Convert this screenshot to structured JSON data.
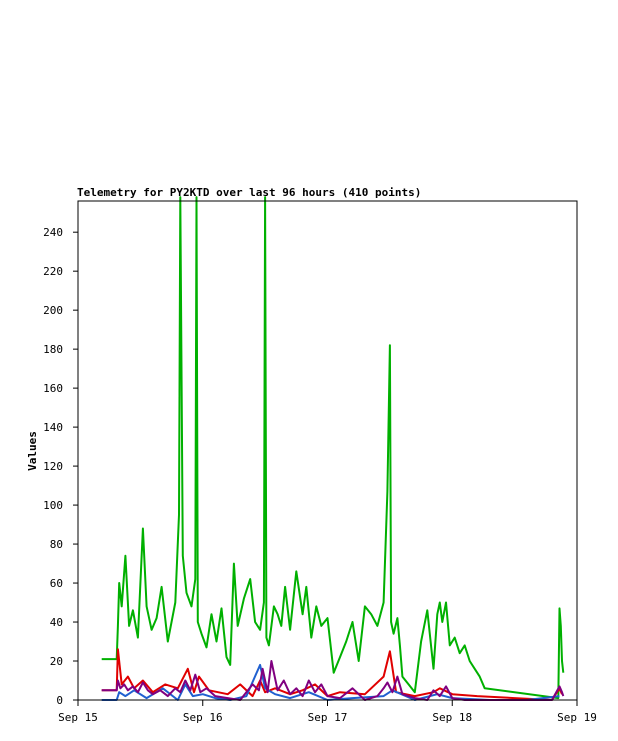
{
  "chart_data": {
    "type": "line",
    "title": "Telemetry for PY2KTD over last 96 hours (410 points)",
    "xlabel": "",
    "ylabel": "Values",
    "ylim": [
      0,
      256
    ],
    "xlim": [
      0,
      4
    ],
    "y_ticks": [
      0,
      20,
      40,
      60,
      80,
      100,
      120,
      140,
      160,
      180,
      200,
      220,
      240
    ],
    "x_ticks": [
      {
        "value": 0,
        "label": "Sep 15"
      },
      {
        "value": 1,
        "label": "Sep 16"
      },
      {
        "value": 2,
        "label": "Sep 17"
      },
      {
        "value": 3,
        "label": "Sep 18"
      },
      {
        "value": 4,
        "label": "Sep 19"
      }
    ],
    "grid": false,
    "legend": "none",
    "series": [
      {
        "color": "#00b000",
        "x": [
          0.19,
          0.31,
          0.32,
          0.33,
          0.35,
          0.38,
          0.41,
          0.44,
          0.48,
          0.52,
          0.55,
          0.59,
          0.63,
          0.67,
          0.72,
          0.78,
          0.81,
          0.82,
          0.84,
          0.87,
          0.91,
          0.94,
          0.95,
          0.96,
          0.99,
          1.03,
          1.07,
          1.11,
          1.15,
          1.19,
          1.22,
          1.25,
          1.28,
          1.33,
          1.38,
          1.42,
          1.46,
          1.49,
          1.5,
          1.51,
          1.53,
          1.57,
          1.6,
          1.63,
          1.66,
          1.7,
          1.75,
          1.8,
          1.83,
          1.87,
          1.91,
          1.95,
          2.0,
          2.05,
          2.1,
          2.15,
          2.2,
          2.25,
          2.3,
          2.35,
          2.4,
          2.45,
          2.48,
          2.5,
          2.51,
          2.53,
          2.56,
          2.58,
          2.6,
          2.65,
          2.7,
          2.75,
          2.8,
          2.85,
          2.88,
          2.9,
          2.92,
          2.95,
          2.98,
          3.02,
          3.06,
          3.1,
          3.14,
          3.18,
          3.22,
          3.26,
          3.85,
          3.86,
          3.87,
          3.88,
          3.89
        ],
        "y": [
          21,
          21,
          38,
          60,
          48,
          74,
          38,
          46,
          32,
          88,
          48,
          36,
          42,
          58,
          30,
          50,
          95,
          258,
          74,
          55,
          48,
          62,
          258,
          40,
          34,
          27,
          44,
          30,
          47,
          22,
          18,
          70,
          38,
          52,
          62,
          40,
          36,
          50,
          258,
          32,
          28,
          48,
          44,
          38,
          58,
          36,
          66,
          44,
          58,
          32,
          48,
          38,
          42,
          14,
          22,
          30,
          40,
          20,
          48,
          44,
          38,
          50,
          107,
          182,
          40,
          34,
          42,
          28,
          12,
          8,
          4,
          30,
          46,
          16,
          44,
          50,
          40,
          50,
          28,
          32,
          24,
          28,
          20,
          16,
          12,
          6,
          1,
          47,
          38,
          20,
          14
        ]
      },
      {
        "color": "#e00000",
        "x": [
          0.19,
          0.31,
          0.32,
          0.35,
          0.4,
          0.45,
          0.52,
          0.6,
          0.7,
          0.8,
          0.88,
          0.93,
          0.97,
          1.05,
          1.2,
          1.3,
          1.4,
          1.46,
          1.5,
          1.58,
          1.7,
          1.8,
          1.9,
          2.0,
          2.1,
          2.3,
          2.45,
          2.5,
          2.55,
          2.7,
          2.85,
          2.9,
          3.0,
          3.2,
          3.5,
          3.8,
          3.86,
          3.88
        ],
        "y": [
          5,
          5,
          26,
          8,
          12,
          6,
          10,
          4,
          8,
          6,
          16,
          4,
          12,
          5,
          3,
          8,
          2,
          10,
          4,
          6,
          3,
          5,
          8,
          2,
          4,
          3,
          12,
          25,
          4,
          2,
          4,
          6,
          3,
          2,
          1,
          0,
          6,
          3
        ]
      },
      {
        "color": "#2060d0",
        "x": [
          0.19,
          0.31,
          0.33,
          0.38,
          0.45,
          0.55,
          0.68,
          0.8,
          0.86,
          0.92,
          1.0,
          1.1,
          1.22,
          1.35,
          1.46,
          1.5,
          1.58,
          1.7,
          1.85,
          2.0,
          2.2,
          2.45,
          2.52,
          2.7,
          2.88,
          3.0,
          3.3,
          3.6,
          3.86
        ],
        "y": [
          0,
          0,
          4,
          2,
          5,
          1,
          6,
          0,
          8,
          2,
          3,
          1,
          0,
          2,
          18,
          6,
          3,
          1,
          4,
          0,
          1,
          2,
          5,
          0,
          3,
          1,
          0,
          0,
          2
        ]
      },
      {
        "color": "#800080",
        "x": [
          0.19,
          0.31,
          0.32,
          0.34,
          0.37,
          0.4,
          0.44,
          0.48,
          0.52,
          0.56,
          0.6,
          0.66,
          0.72,
          0.78,
          0.82,
          0.86,
          0.9,
          0.94,
          0.98,
          1.03,
          1.1,
          1.2,
          1.3,
          1.4,
          1.45,
          1.48,
          1.52,
          1.55,
          1.6,
          1.65,
          1.7,
          1.75,
          1.8,
          1.85,
          1.9,
          1.95,
          2.0,
          2.1,
          2.2,
          2.3,
          2.4,
          2.45,
          2.48,
          2.52,
          2.56,
          2.6,
          2.7,
          2.8,
          2.85,
          2.9,
          2.95,
          3.0,
          3.1,
          3.3,
          3.6,
          3.8,
          3.86,
          3.88,
          3.89
        ],
        "y": [
          5,
          5,
          10,
          6,
          8,
          5,
          7,
          4,
          9,
          5,
          3,
          5,
          2,
          6,
          4,
          10,
          5,
          13,
          4,
          6,
          2,
          1,
          0,
          8,
          5,
          16,
          4,
          20,
          5,
          10,
          3,
          6,
          2,
          10,
          4,
          8,
          2,
          1,
          6,
          0,
          2,
          6,
          9,
          4,
          12,
          3,
          1,
          0,
          5,
          2,
          7,
          1,
          0,
          0,
          0,
          0,
          7,
          4,
          2
        ]
      }
    ]
  }
}
